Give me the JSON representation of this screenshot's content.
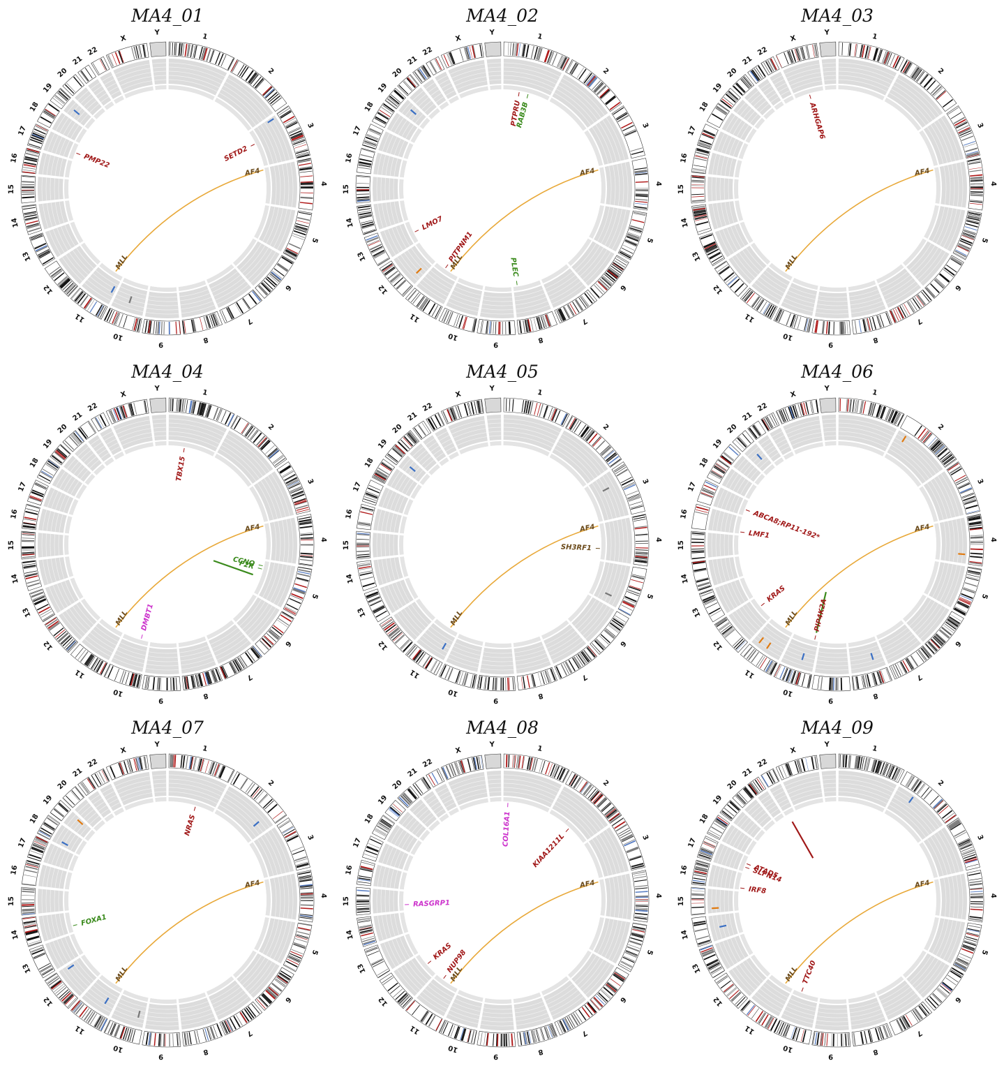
{
  "figure": {
    "chromosomes": [
      "1",
      "2",
      "3",
      "4",
      "5",
      "6",
      "7",
      "8",
      "9",
      "10",
      "11",
      "12",
      "13",
      "14",
      "15",
      "16",
      "17",
      "18",
      "19",
      "20",
      "21",
      "22",
      "X",
      "Y"
    ],
    "colors": {
      "track_bg": "#dcdcdc",
      "track_lines": "#f2f2f2",
      "fusion_link": "#e8a838",
      "red": "#a01818",
      "green": "#3a8a1c",
      "magenta": "#cc33cc",
      "brown": "#6b4a1a",
      "blue": "#3a6fc4",
      "orange": "#e07a10",
      "gray": "#777777"
    },
    "panels": [
      {
        "title": "MA4_01",
        "fusion": {
          "from_chr": "11",
          "from_label": "MLL",
          "to_chr": "4",
          "to_label": "AF4"
        },
        "labels": [
          {
            "text": "SETD2",
            "chr": "3",
            "pos": 0.35,
            "color": "red"
          },
          {
            "text": "PMP22",
            "chr": "17",
            "pos": 0.45,
            "color": "red"
          }
        ],
        "marks": [
          {
            "chr": "3",
            "pos": 0.05,
            "color": "blue",
            "level": 0.75
          },
          {
            "chr": "19",
            "pos": 0.5,
            "color": "blue",
            "level": 0.55
          },
          {
            "chr": "11",
            "pos": 0.1,
            "color": "blue",
            "level": 0.4
          },
          {
            "chr": "10",
            "pos": 0.5,
            "color": "gray",
            "level": 0.5
          }
        ]
      },
      {
        "title": "MA4_02",
        "fusion": {
          "from_chr": "11",
          "from_label": "MLL",
          "to_chr": "4",
          "to_label": "AF4"
        },
        "labels": [
          {
            "text": "PTPRU",
            "chr": "1",
            "pos": 0.35,
            "color": "red"
          },
          {
            "text": "RAB3B",
            "chr": "1",
            "pos": 0.55,
            "color": "green"
          },
          {
            "text": "LMO7",
            "chr": "13",
            "pos": 0.45,
            "color": "red"
          },
          {
            "text": "PITPNM1",
            "chr": "11",
            "pos": 0.6,
            "color": "red"
          },
          {
            "text": "PLEC",
            "chr": "8",
            "pos": 0.85,
            "color": "green"
          }
        ],
        "marks": [
          {
            "chr": "19",
            "pos": 0.6,
            "color": "blue",
            "level": 0.5
          },
          {
            "chr": "12",
            "pos": 0.2,
            "color": "orange",
            "level": 0.5
          }
        ]
      },
      {
        "title": "MA4_03",
        "fusion": {
          "from_chr": "11",
          "from_label": "MLL",
          "to_chr": "4",
          "to_label": "AF4"
        },
        "labels": [
          {
            "text": "ARHGAP6",
            "chr": "X",
            "pos": 0.5,
            "color": "red"
          }
        ],
        "marks": []
      },
      {
        "title": "MA4_04",
        "fusion": {
          "from_chr": "11",
          "from_label": "MLL",
          "to_chr": "4",
          "to_label": "AF4"
        },
        "labels": [
          {
            "text": "TBX15",
            "chr": "1",
            "pos": 0.35,
            "color": "red"
          },
          {
            "text": "CCNO",
            "chr": "5",
            "pos": 0.15,
            "color": "green"
          },
          {
            "text": "F2R",
            "chr": "5",
            "pos": 0.25,
            "color": "green"
          },
          {
            "text": "DMBT1",
            "chr": "10",
            "pos": 0.3,
            "color": "magenta"
          }
        ],
        "marks": [
          {
            "chr": "5",
            "pos": 0.5,
            "color": "green",
            "level": 0.1,
            "long": true
          }
        ]
      },
      {
        "title": "MA4_05",
        "fusion": {
          "from_chr": "11",
          "from_label": "MLL",
          "to_chr": "4",
          "to_label": "AF4"
        },
        "labels": [
          {
            "text": "SH3RF1",
            "chr": "4",
            "pos": 0.7,
            "color": "brown"
          }
        ],
        "marks": [
          {
            "chr": "19",
            "pos": 0.5,
            "color": "blue",
            "level": 0.5
          },
          {
            "chr": "3",
            "pos": 0.3,
            "color": "gray",
            "level": 0.5
          },
          {
            "chr": "5",
            "pos": 0.8,
            "color": "gray",
            "level": 0.5
          },
          {
            "chr": "11",
            "pos": 0.2,
            "color": "blue",
            "level": 0.5
          }
        ]
      },
      {
        "title": "MA4_06",
        "fusion": {
          "from_chr": "11",
          "from_label": "MLL",
          "to_chr": "4",
          "to_label": "AF4"
        },
        "labels": [
          {
            "text": "ABCA8;RP11-192*",
            "chr": "17",
            "pos": 0.4,
            "color": "red"
          },
          {
            "text": "LMF1",
            "chr": "16",
            "pos": 0.1,
            "color": "red"
          },
          {
            "text": "KRAS",
            "chr": "12",
            "pos": 0.6,
            "color": "red"
          },
          {
            "text": "PIP4K2A",
            "chr": "10",
            "pos": 0.15,
            "color": "red"
          }
        ],
        "marks": [
          {
            "chr": "2",
            "pos": 0.15,
            "color": "orange",
            "level": 0.8
          },
          {
            "chr": "20",
            "pos": 0.6,
            "color": "blue",
            "level": 0.5
          },
          {
            "chr": "4",
            "pos": 0.8,
            "color": "orange",
            "level": 0.8
          },
          {
            "chr": "11",
            "pos": 0.5,
            "color": "orange",
            "level": 0.7
          },
          {
            "chr": "11",
            "pos": 0.8,
            "color": "orange",
            "level": 0.7
          },
          {
            "chr": "10",
            "pos": 0.4,
            "color": "blue",
            "level": 0.5
          },
          {
            "chr": "8",
            "pos": 0.3,
            "color": "blue",
            "level": 0.5
          },
          {
            "chr": "10",
            "pos": 0.15,
            "color": "green",
            "level": 0.1,
            "long": true
          }
        ]
      },
      {
        "title": "MA4_07",
        "fusion": {
          "from_chr": "11",
          "from_label": "MLL",
          "to_chr": "4",
          "to_label": "AF4"
        },
        "labels": [
          {
            "text": "NRAS",
            "chr": "1",
            "pos": 0.6,
            "color": "red"
          },
          {
            "text": "FOXA1",
            "chr": "14",
            "pos": 0.3,
            "color": "green"
          }
        ],
        "marks": [
          {
            "chr": "19",
            "pos": 0.8,
            "color": "orange",
            "level": 0.5
          },
          {
            "chr": "18",
            "pos": 0.2,
            "color": "blue",
            "level": 0.5
          },
          {
            "chr": "2",
            "pos": 0.8,
            "color": "blue",
            "level": 0.5
          },
          {
            "chr": "12",
            "pos": 0.9,
            "color": "blue",
            "level": 0.5
          },
          {
            "chr": "11",
            "pos": 0.3,
            "color": "blue",
            "level": 0.5
          },
          {
            "chr": "10",
            "pos": 0.2,
            "color": "gray",
            "level": 0.5
          }
        ]
      },
      {
        "title": "MA4_08",
        "fusion": {
          "from_chr": "11",
          "from_label": "MLL",
          "to_chr": "4",
          "to_label": "AF4"
        },
        "labels": [
          {
            "text": "COL16A1",
            "chr": "1",
            "pos": 0.1,
            "color": "magenta"
          },
          {
            "text": "KIAA1211L",
            "chr": "2",
            "pos": 0.55,
            "color": "red"
          },
          {
            "text": "RASGRP1",
            "chr": "15",
            "pos": 0.3,
            "color": "magenta"
          },
          {
            "text": "KRAS",
            "chr": "12",
            "pos": 0.5,
            "color": "red"
          },
          {
            "text": "NUP98",
            "chr": "11",
            "pos": 0.7,
            "color": "red"
          }
        ],
        "marks": []
      },
      {
        "title": "MA4_09",
        "fusion": {
          "from_chr": "11",
          "from_label": "MLL",
          "to_chr": "4",
          "to_label": "AF4"
        },
        "labels": [
          {
            "text": "SLFN14",
            "chr": "17",
            "pos": 0.3,
            "color": "red"
          },
          {
            "text": "ATAD5",
            "chr": "17",
            "pos": 0.55,
            "color": "red"
          },
          {
            "text": "IRF8",
            "chr": "16",
            "pos": 0.1,
            "color": "red"
          },
          {
            "text": "TTC40",
            "chr": "10",
            "pos": 0.7,
            "color": "red"
          }
        ],
        "marks": [
          {
            "chr": "2",
            "pos": 0.3,
            "color": "blue",
            "level": 0.8
          },
          {
            "chr": "15",
            "pos": 0.2,
            "color": "orange",
            "level": 0.7
          },
          {
            "chr": "14",
            "pos": 0.5,
            "color": "blue",
            "level": 0.5
          },
          {
            "chr": "22",
            "pos": 0.3,
            "color": "red",
            "level": 0.1,
            "long": true
          }
        ]
      }
    ]
  }
}
